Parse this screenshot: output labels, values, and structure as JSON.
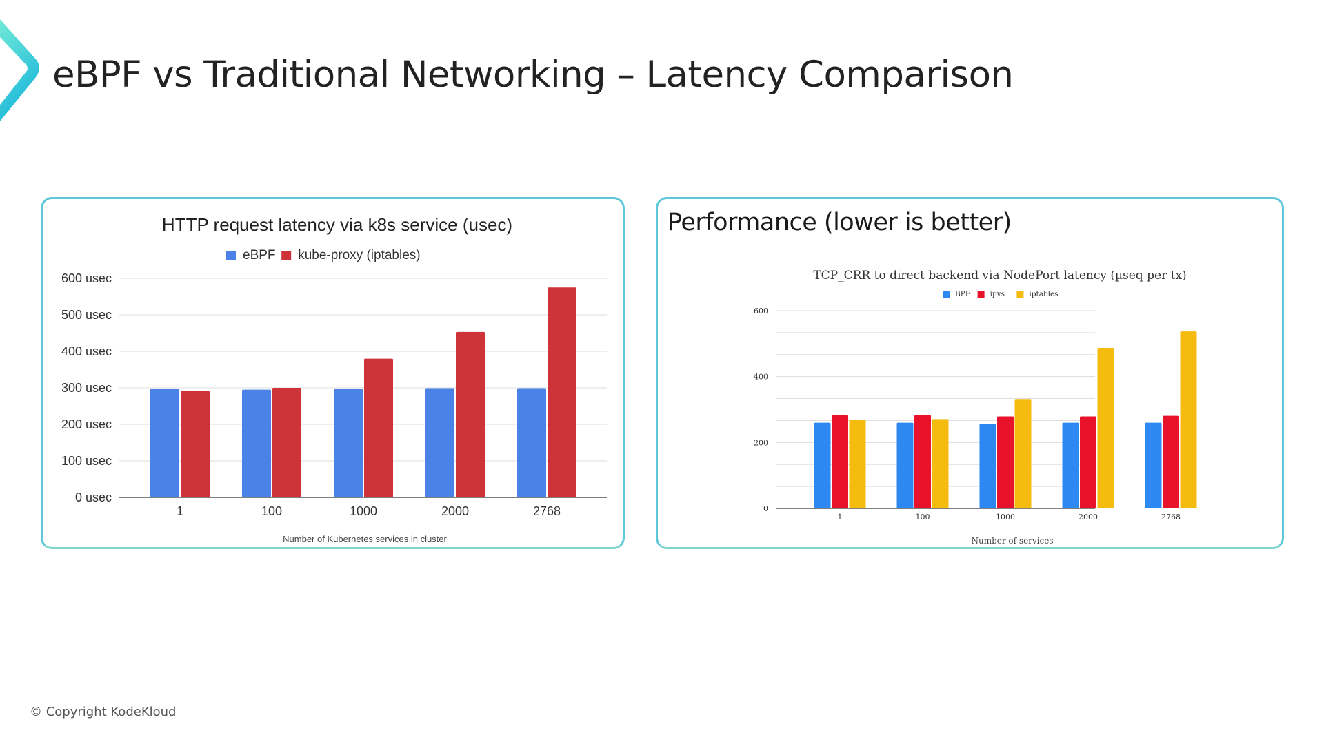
{
  "slide": {
    "title": "eBPF vs Traditional Networking – Latency Comparison",
    "footer": "© Copyright KodeKloud",
    "logo_icon": "chevron-right-icon",
    "accent_colors": {
      "logo_top": "#6ee6d6",
      "logo_bottom": "#1fbcd9",
      "card_border": "#5fc8d8"
    }
  },
  "left_card": {
    "title": "HTTP request latency via k8s service (usec)",
    "legend": [
      {
        "label": "eBPF",
        "color": "#4a82e8"
      },
      {
        "label": "kube-proxy (iptables)",
        "color": "#cf333a"
      }
    ],
    "y_ticks": [
      "0 usec",
      "100 usec",
      "200 usec",
      "300 usec",
      "400 usec",
      "500 usec",
      "600 usec"
    ],
    "x_ticks": [
      "1",
      "100",
      "1000",
      "2000",
      "2768"
    ],
    "xlabel": "Number of Kubernetes services in cluster"
  },
  "right_card": {
    "heading": "Performance (lower is better)",
    "title": "TCP_CRR to direct backend via NodePort latency (µseq per tx)",
    "legend": [
      {
        "label": "BPF",
        "color": "#2d88f2"
      },
      {
        "label": "ipvs",
        "color": "#e8132b"
      },
      {
        "label": "iptables",
        "color": "#f6bb0f"
      }
    ],
    "y_ticks": [
      "0",
      "200",
      "400",
      "600"
    ],
    "x_ticks": [
      "1",
      "100",
      "1000",
      "2000",
      "2768"
    ],
    "xlabel": "Number of services"
  },
  "chart_data": [
    {
      "type": "bar",
      "title": "HTTP request latency via k8s service (usec)",
      "categories": [
        "1",
        "100",
        "1000",
        "2000",
        "2768"
      ],
      "series": [
        {
          "name": "eBPF",
          "color": "#4a82e8",
          "values": [
            298,
            295,
            298,
            299,
            299
          ]
        },
        {
          "name": "kube-proxy (iptables)",
          "color": "#cf333a",
          "values": [
            291,
            300,
            380,
            453,
            575
          ]
        }
      ],
      "xlabel": "Number of Kubernetes services in cluster",
      "ylabel": "",
      "ylim": [
        0,
        600
      ],
      "yticks": [
        0,
        100,
        200,
        300,
        400,
        500,
        600
      ],
      "ytick_suffix": " usec",
      "grid": true,
      "legend_position": "top"
    },
    {
      "type": "bar",
      "title": "TCP_CRR to direct backend via NodePort latency (µseq per tx)",
      "subtitle": "Performance (lower is better)",
      "categories": [
        "1",
        "100",
        "1000",
        "2000",
        "2768"
      ],
      "series": [
        {
          "name": "BPF",
          "color": "#2d88f2",
          "values": [
            260,
            260,
            257,
            260,
            260
          ]
        },
        {
          "name": "ipvs",
          "color": "#e8132b",
          "values": [
            283,
            283,
            279,
            279,
            281
          ]
        },
        {
          "name": "iptables",
          "color": "#f6bb0f",
          "values": [
            269,
            271,
            332,
            487,
            537
          ]
        }
      ],
      "xlabel": "Number of services",
      "ylabel": "",
      "ylim": [
        0,
        600
      ],
      "yticks": [
        0,
        200,
        400,
        600
      ],
      "grid": true,
      "legend_position": "top"
    }
  ]
}
